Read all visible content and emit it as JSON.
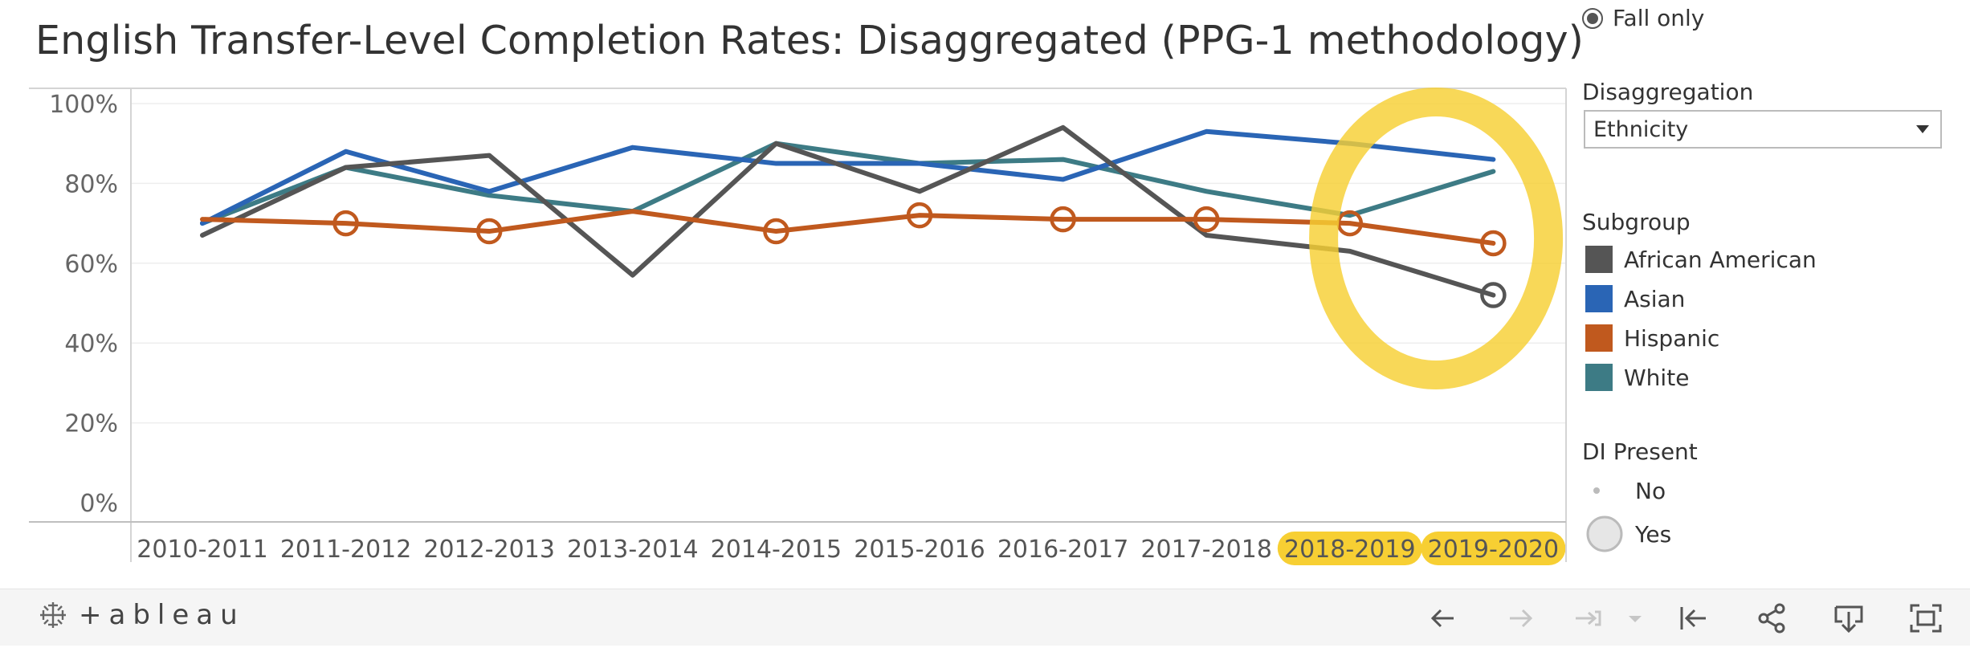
{
  "chart_data": {
    "type": "line",
    "title": "English Transfer-Level Completion Rates: Disaggregated (PPG-1 methodology)",
    "categories": [
      "2010-2011",
      "2011-2012",
      "2012-2013",
      "2013-2014",
      "2014-2015",
      "2015-2016",
      "2016-2017",
      "2017-2018",
      "2018-2019",
      "2019-2020"
    ],
    "highlighted_categories": [
      "2018-2019",
      "2019-2020"
    ],
    "y_ticks": [
      "0%",
      "20%",
      "40%",
      "60%",
      "80%",
      "100%"
    ],
    "ylim": [
      0,
      100
    ],
    "grid": "horizontal",
    "legend_placement": "right",
    "series": [
      {
        "name": "White",
        "color": "#3d7b85",
        "values": [
          70,
          84,
          77,
          73,
          90,
          85,
          86,
          78,
          72,
          83
        ],
        "di": [
          false,
          false,
          false,
          false,
          false,
          false,
          false,
          false,
          false,
          false
        ]
      },
      {
        "name": "Asian",
        "color": "#2a65b5",
        "values": [
          70,
          88,
          78,
          89,
          85,
          85,
          81,
          93,
          90,
          86
        ],
        "di": [
          false,
          false,
          false,
          false,
          false,
          false,
          false,
          false,
          false,
          false
        ]
      },
      {
        "name": "African American",
        "color": "#555555",
        "values": [
          67,
          84,
          87,
          57,
          90,
          78,
          94,
          67,
          63,
          52
        ],
        "di": [
          false,
          false,
          false,
          false,
          false,
          false,
          false,
          false,
          false,
          true
        ]
      },
      {
        "name": "Hispanic",
        "color": "#c0591e",
        "values": [
          71,
          70,
          68,
          73,
          68,
          72,
          71,
          71,
          70,
          65
        ],
        "di": [
          false,
          true,
          true,
          false,
          true,
          true,
          true,
          true,
          true,
          true
        ]
      }
    ],
    "annotation_color": "#f7cf33"
  },
  "filters": {
    "term_option": "Fall only",
    "disaggregation_heading": "Disaggregation",
    "disaggregation_value": "Ethnicity",
    "subgroup_heading": "Subgroup",
    "legend": [
      {
        "label": "African American",
        "color": "#555555"
      },
      {
        "label": "Asian",
        "color": "#2a65b5"
      },
      {
        "label": "Hispanic",
        "color": "#c0591e"
      },
      {
        "label": "White",
        "color": "#3d7b85"
      }
    ],
    "di_heading": "DI Present",
    "di_no": "No",
    "di_yes": "Yes"
  },
  "toolbar": {
    "brand": "+ableau",
    "icons": [
      "undo-icon",
      "redo-icon",
      "revert-icon",
      "revert-dropdown-icon",
      "reset-icon",
      "share-icon",
      "download-icon",
      "fullscreen-icon"
    ]
  }
}
